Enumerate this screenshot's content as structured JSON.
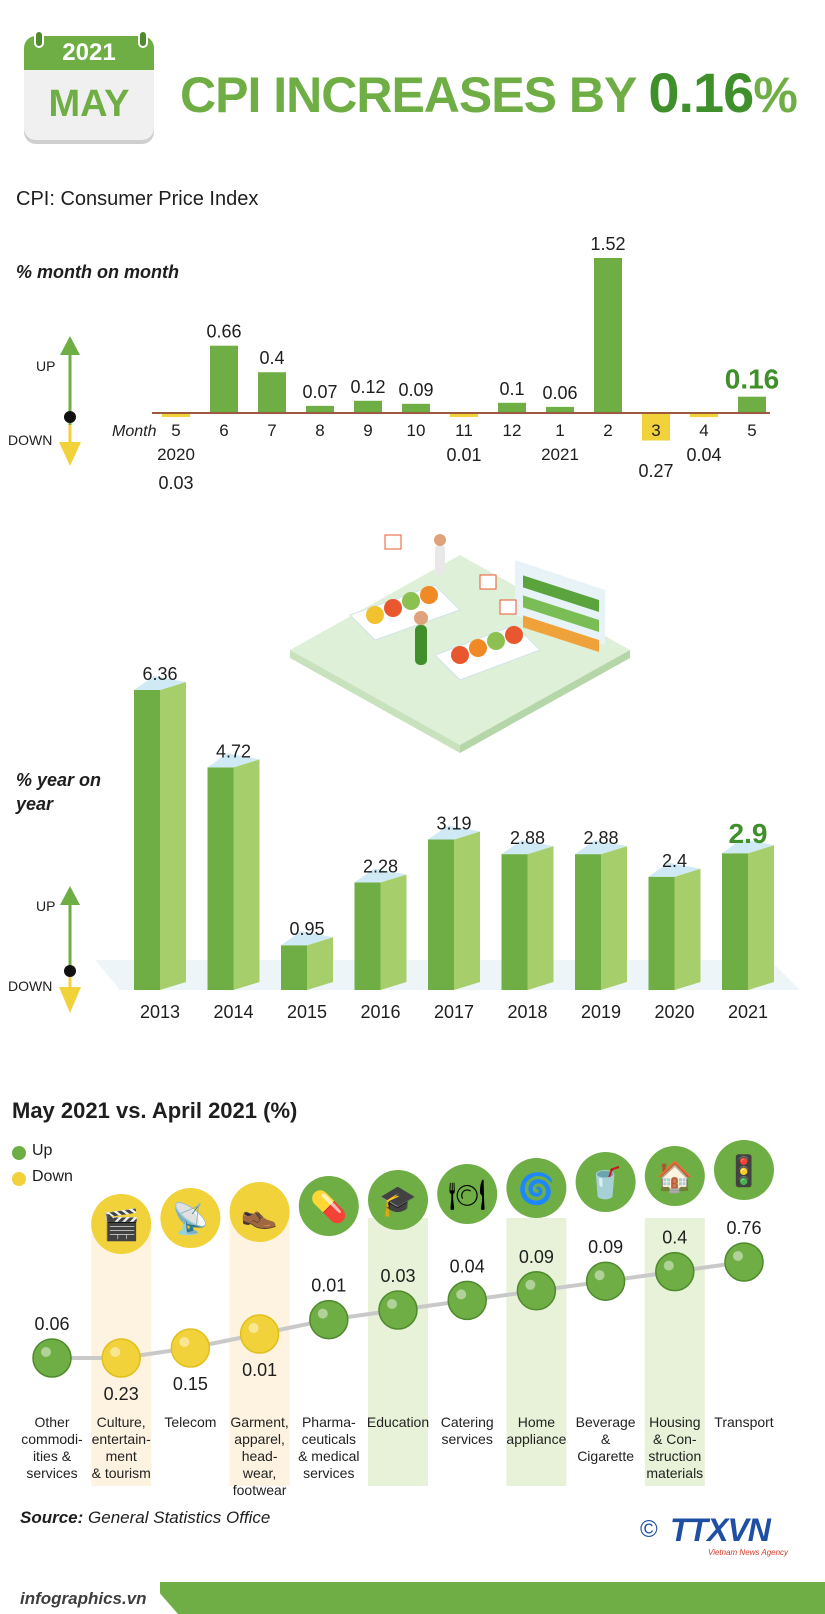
{
  "header": {
    "calendar_year": "2021",
    "calendar_month": "MAY",
    "headline_prefix": "CPI INCREASES BY ",
    "headline_value": "0.16",
    "headline_suffix": "%",
    "definition": "CPI: Consumer Price Index"
  },
  "updown": {
    "up": "UP",
    "down": "DOWN"
  },
  "colors": {
    "green": "#6fae45",
    "dark_green": "#3f8f2a",
    "yellow": "#f2d23a",
    "axis": "#9b5a3c"
  },
  "chart_data": [
    {
      "type": "bar",
      "title": "% month on month",
      "xlabel": "Month",
      "categories": [
        "5",
        "6",
        "7",
        "8",
        "9",
        "10",
        "11",
        "12",
        "1",
        "2",
        "3",
        "4",
        "5"
      ],
      "year_labels": [
        {
          "year": "2020",
          "category_index": 0
        },
        {
          "year": "2021",
          "category_index": 8
        }
      ],
      "values": [
        -0.03,
        0.66,
        0.4,
        0.07,
        0.12,
        0.09,
        -0.01,
        0.1,
        0.06,
        1.52,
        -0.27,
        -0.04,
        0.16
      ],
      "value_labels": [
        "0.03",
        "0.66",
        "0.4",
        "0.07",
        "0.12",
        "0.09",
        "0.01",
        "0.1",
        "0.06",
        "1.52",
        "0.27",
        "0.04",
        "0.16"
      ],
      "highlight_index": 12,
      "ylim": [
        -0.3,
        1.6
      ]
    },
    {
      "type": "bar",
      "title": "% year on year",
      "categories": [
        "2013",
        "2014",
        "2015",
        "2016",
        "2017",
        "2018",
        "2019",
        "2020",
        "2021"
      ],
      "values": [
        6.36,
        4.72,
        0.95,
        2.28,
        3.19,
        2.88,
        2.88,
        2.4,
        2.9
      ],
      "value_labels": [
        "6.36",
        "4.72",
        "0.95",
        "2.28",
        "3.19",
        "2.88",
        "2.88",
        "2.4",
        "2.9"
      ],
      "highlight_index": 8,
      "ylim": [
        0,
        6.5
      ]
    },
    {
      "type": "scatter",
      "title": "May 2021 vs. April 2021 (%)",
      "legend": [
        {
          "name": "Up",
          "color": "#6fae45"
        },
        {
          "name": "Down",
          "color": "#f2d23a"
        }
      ],
      "categories": [
        {
          "name": "Other commodi- ities & services",
          "lines": [
            "Other",
            "commodi-",
            "ities &",
            "services"
          ],
          "value": "0.06",
          "direction": "up",
          "icon": "none",
          "shaded": false
        },
        {
          "name": "Culture, entertain- ment & tourism",
          "lines": [
            "Culture,",
            "entertain-",
            "ment",
            "& tourism"
          ],
          "value": "0.23",
          "direction": "down",
          "icon": "clapperboard-icon",
          "shaded": true
        },
        {
          "name": "Telecom",
          "lines": [
            "Telecom"
          ],
          "value": "0.15",
          "direction": "down",
          "icon": "antenna-tower-icon",
          "shaded": false
        },
        {
          "name": "Garment, apparel, head- wear, footwear",
          "lines": [
            "Garment,",
            "apparel,",
            "head-",
            "wear,",
            "footwear"
          ],
          "value": "0.01",
          "direction": "down",
          "icon": "shirt-shoe-icon",
          "shaded": true
        },
        {
          "name": "Pharma- ceuticals & medical services",
          "lines": [
            "Pharma-",
            "ceuticals",
            "& medical",
            "services"
          ],
          "value": "0.01",
          "direction": "up",
          "icon": "pill-icon",
          "shaded": false
        },
        {
          "name": "Education",
          "lines": [
            "Education"
          ],
          "value": "0.03",
          "direction": "up",
          "icon": "graduation-cap-icon",
          "shaded": true
        },
        {
          "name": "Catering services",
          "lines": [
            "Catering",
            "services"
          ],
          "value": "0.04",
          "direction": "up",
          "icon": "food-plate-icon",
          "shaded": false
        },
        {
          "name": "Home appliance",
          "lines": [
            "Home",
            "appliance"
          ],
          "value": "0.09",
          "direction": "up",
          "icon": "washing-machine-icon",
          "shaded": true
        },
        {
          "name": "Beverage & Cigarette",
          "lines": [
            "Beverage",
            "&",
            "Cigarette"
          ],
          "value": "0.09",
          "direction": "up",
          "icon": "beverage-icon",
          "shaded": false
        },
        {
          "name": "Housing & Con- struction materials",
          "lines": [
            "Housing",
            "& Con-",
            "struction",
            "materials"
          ],
          "value": "0.4",
          "direction": "up",
          "icon": "house-icon",
          "shaded": true
        },
        {
          "name": "Transport",
          "lines": [
            "Transport"
          ],
          "value": "0.76",
          "direction": "up",
          "icon": "traffic-light-icon",
          "shaded": false
        }
      ]
    }
  ],
  "source": {
    "label": "Source:",
    "text": "General Statistics Office"
  },
  "footer": {
    "site": "infographics.vn",
    "logo": "TTXVN",
    "logo_sub": "Vietnam News Agency",
    "copyright": "©"
  }
}
